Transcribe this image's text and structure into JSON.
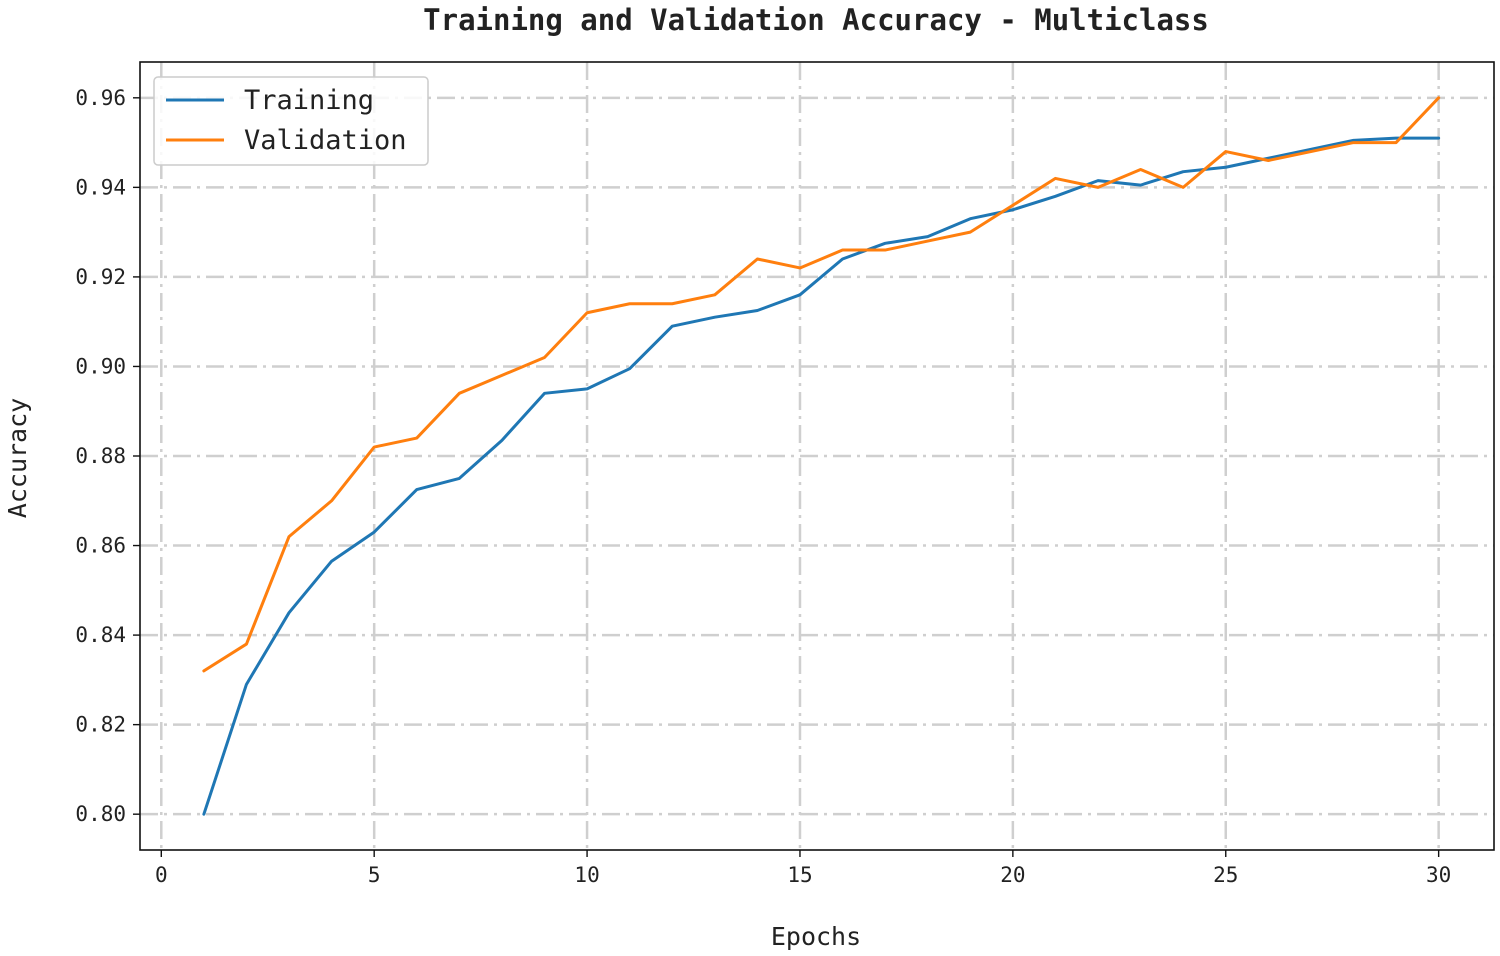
{
  "chart_data": {
    "type": "line",
    "title": "Training and Validation Accuracy - Multiclass",
    "xlabel": "Epochs",
    "ylabel": "Accuracy",
    "xlim": [
      -0.5,
      31.3
    ],
    "ylim": [
      0.792,
      0.968
    ],
    "xticks": [
      0,
      5,
      10,
      15,
      20,
      25,
      30
    ],
    "yticks": [
      0.8,
      0.82,
      0.84,
      0.86,
      0.88,
      0.9,
      0.92,
      0.94,
      0.96
    ],
    "ytick_labels": [
      "0.80",
      "0.82",
      "0.84",
      "0.86",
      "0.88",
      "0.90",
      "0.92",
      "0.94",
      "0.96"
    ],
    "grid": true,
    "legend_position": "top-left",
    "x": [
      1,
      2,
      3,
      4,
      5,
      6,
      7,
      8,
      9,
      10,
      11,
      12,
      13,
      14,
      15,
      16,
      17,
      18,
      19,
      20,
      21,
      22,
      23,
      24,
      25,
      26,
      27,
      28,
      29,
      30
    ],
    "series": [
      {
        "name": "Training",
        "color": "#1f77b4",
        "values": [
          0.8,
          0.829,
          0.845,
          0.8565,
          0.863,
          0.8725,
          0.875,
          0.8835,
          0.894,
          0.895,
          0.8995,
          0.909,
          0.911,
          0.9125,
          0.916,
          0.924,
          0.9275,
          0.929,
          0.933,
          0.935,
          0.938,
          0.9415,
          0.9405,
          0.9435,
          0.9445,
          0.9465,
          0.9485,
          0.9505,
          0.951,
          0.951
        ]
      },
      {
        "name": "Validation",
        "color": "#ff7f0e",
        "values": [
          0.832,
          0.838,
          0.862,
          0.87,
          0.882,
          0.884,
          0.894,
          0.898,
          0.902,
          0.912,
          0.914,
          0.914,
          0.916,
          0.924,
          0.922,
          0.926,
          0.926,
          0.928,
          0.93,
          0.936,
          0.942,
          0.94,
          0.944,
          0.94,
          0.948,
          0.946,
          0.948,
          0.95,
          0.95,
          0.96
        ]
      }
    ]
  }
}
